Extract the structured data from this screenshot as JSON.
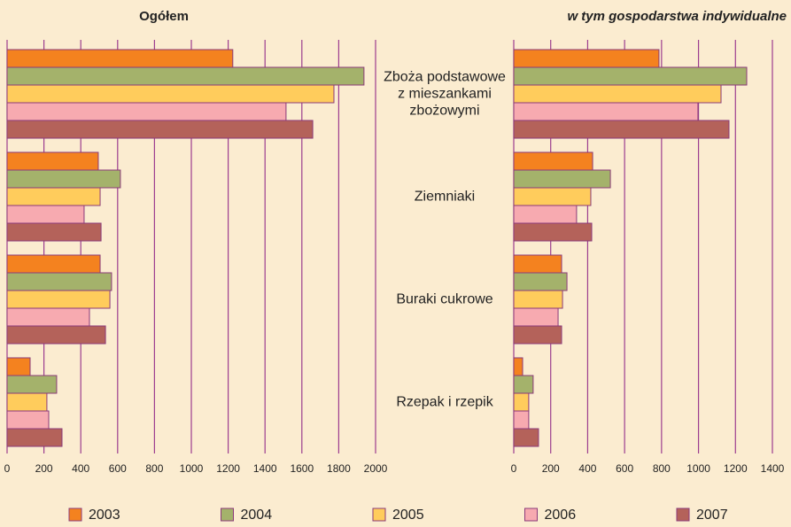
{
  "chart_data": [
    {
      "type": "bar",
      "orientation": "horizontal",
      "title": "Ogółem",
      "categories": [
        "Zboża podstawowe z mieszankami zbożowymi",
        "Ziemniaki",
        "Buraki cukrowe",
        "Rzepak i rzepik"
      ],
      "series": [
        {
          "name": "2003",
          "color": "#f4821f",
          "values": [
            1225,
            495,
            505,
            125
          ]
        },
        {
          "name": "2004",
          "color": "#a4b26b",
          "values": [
            1937,
            615,
            567,
            269
          ]
        },
        {
          "name": "2005",
          "color": "#ffcc5c",
          "values": [
            1774,
            505,
            558,
            216
          ]
        },
        {
          "name": "2006",
          "color": "#f7aab0",
          "values": [
            1514,
            418,
            447,
            226
          ]
        },
        {
          "name": "2007",
          "color": "#b4625a",
          "values": [
            1659,
            510,
            534,
            298
          ]
        }
      ],
      "xlim": [
        0,
        2000
      ],
      "xticks": [
        0,
        200,
        400,
        600,
        800,
        1000,
        1200,
        1400,
        1600,
        1800,
        2000
      ],
      "grid": true
    },
    {
      "type": "bar",
      "orientation": "horizontal",
      "title": "w tym gospodarstwa indywidualne",
      "series": [
        {
          "name": "2003",
          "color": "#f4821f",
          "values": [
            786,
            427,
            259,
            48
          ]
        },
        {
          "name": "2004",
          "color": "#a4b26b",
          "values": [
            1261,
            523,
            288,
            105
          ]
        },
        {
          "name": "2005",
          "color": "#ffcc5c",
          "values": [
            1122,
            417,
            264,
            81
          ]
        },
        {
          "name": "2006",
          "color": "#f7aab0",
          "values": [
            997,
            340,
            240,
            81
          ]
        },
        {
          "name": "2007",
          "color": "#b4625a",
          "values": [
            1165,
            422,
            259,
            134
          ]
        }
      ],
      "xlim": [
        0,
        1400
      ],
      "xticks": [
        0,
        200,
        400,
        600,
        800,
        1000,
        1200,
        1400
      ],
      "grid": true
    }
  ]
}
